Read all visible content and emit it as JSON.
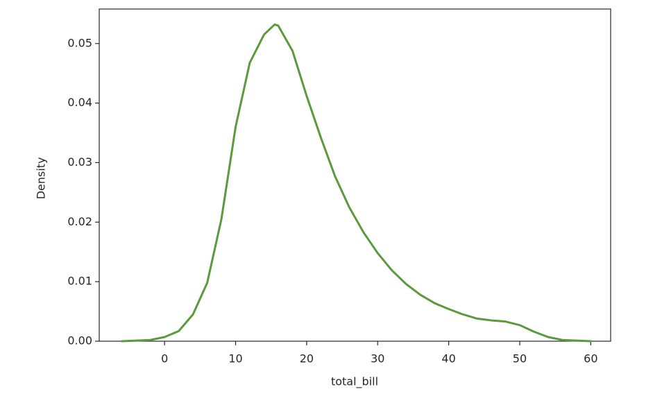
{
  "chart_data": {
    "type": "line",
    "x_label": "total_bill",
    "y_label": "Density",
    "x": [
      -6,
      -4,
      -2,
      0,
      2,
      4,
      6,
      8,
      10,
      12,
      14,
      15.5,
      16,
      18,
      20,
      22,
      24,
      26,
      28,
      30,
      32,
      34,
      36,
      38,
      40,
      42,
      44,
      46,
      48,
      50,
      52,
      54,
      56,
      58,
      60
    ],
    "series": [
      {
        "color": "#5b9a3c",
        "values": [
          0.0,
          0.0001,
          0.0002,
          0.0007,
          0.0017,
          0.0045,
          0.0098,
          0.0205,
          0.036,
          0.0468,
          0.0515,
          0.0532,
          0.053,
          0.0488,
          0.0412,
          0.0342,
          0.0277,
          0.0225,
          0.0183,
          0.0148,
          0.0119,
          0.0096,
          0.0078,
          0.0064,
          0.0054,
          0.0045,
          0.0038,
          0.0035,
          0.0033,
          0.0027,
          0.0016,
          0.0007,
          0.0002,
          0.0001,
          0.0
        ]
      }
    ],
    "xlim": [
      -9.2,
      62.8
    ],
    "xticks": [
      0,
      10,
      20,
      30,
      40,
      50,
      60
    ],
    "ylim": [
      0,
      0.0558
    ],
    "yticks": [
      {
        "value": 0,
        "label": "0.00"
      },
      {
        "value": 0.01,
        "label": "0.01"
      },
      {
        "value": 0.02,
        "label": "0.02"
      },
      {
        "value": 0.03,
        "label": "0.03"
      },
      {
        "value": 0.04,
        "label": "0.04"
      },
      {
        "value": 0.05,
        "label": "0.05"
      }
    ],
    "grid": false
  }
}
